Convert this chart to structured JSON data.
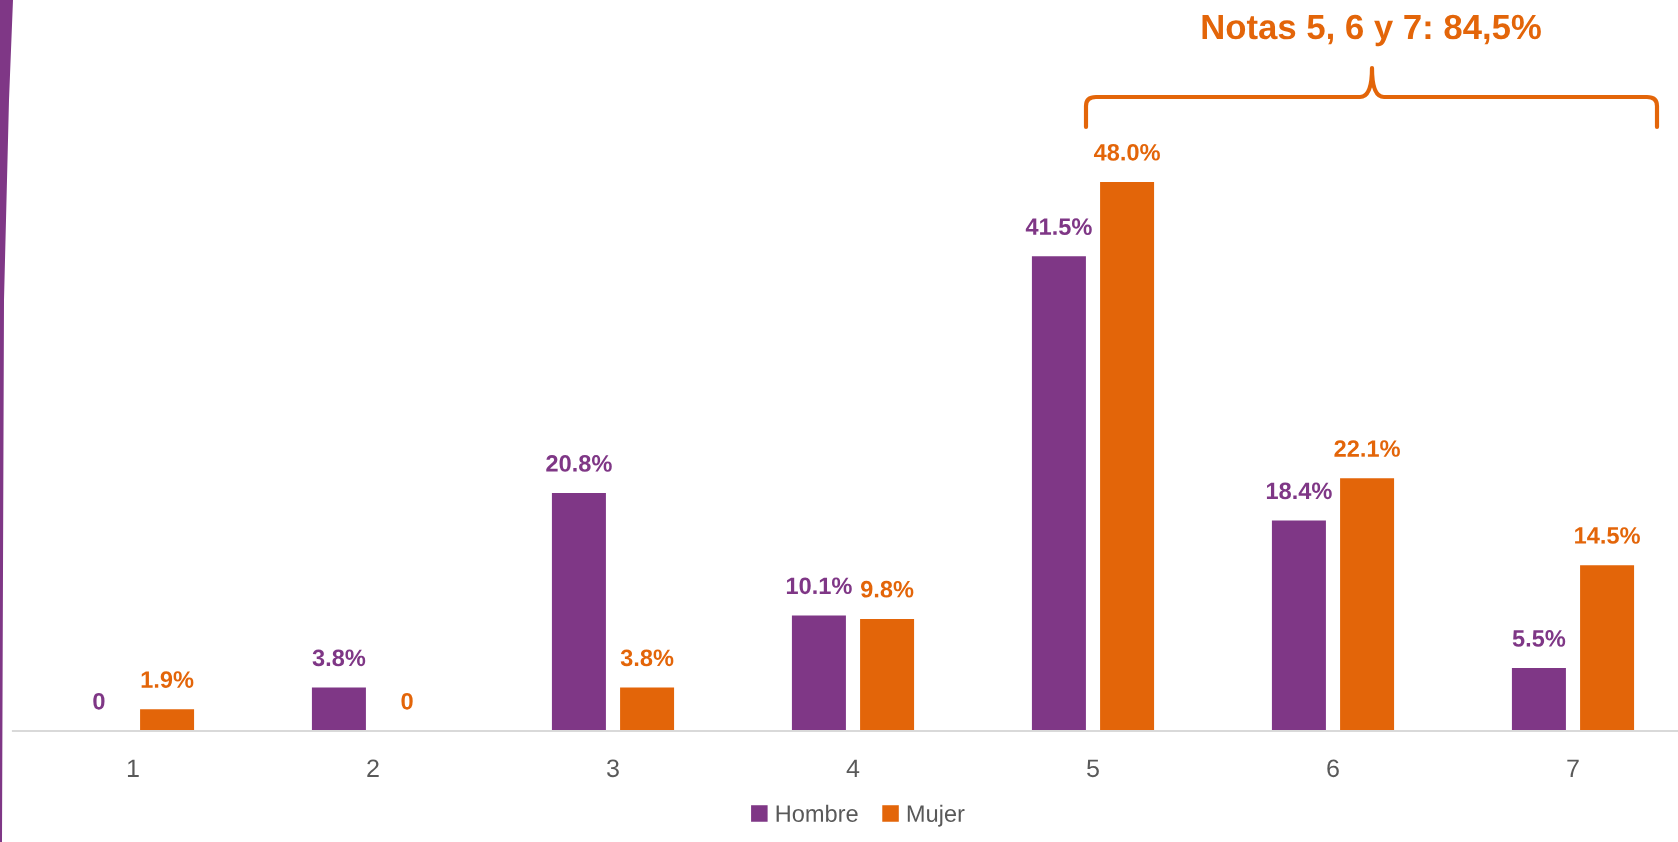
{
  "chart_data": {
    "type": "bar",
    "categories": [
      "1",
      "2",
      "3",
      "4",
      "5",
      "6",
      "7"
    ],
    "series": [
      {
        "name": "Hombre",
        "color": "#7f3786",
        "values": [
          0,
          3.8,
          20.8,
          10.1,
          41.5,
          18.4,
          5.5
        ],
        "value_labels": [
          "0",
          "3.8%",
          "20.8%",
          "10.1%",
          "41.5%",
          "18.4%",
          "5.5%"
        ]
      },
      {
        "name": "Mujer",
        "color": "#e36509",
        "values": [
          1.9,
          0,
          3.8,
          9.8,
          48.0,
          22.1,
          14.5
        ],
        "value_labels": [
          "1.9%",
          "0",
          "3.8%",
          "9.8%",
          "48.0%",
          "22.1%",
          "14.5%"
        ]
      }
    ],
    "legend": "bottom",
    "tick_labels": "x",
    "annotations": [
      "Notas 5, 6 y 7: 84,5%"
    ]
  }
}
